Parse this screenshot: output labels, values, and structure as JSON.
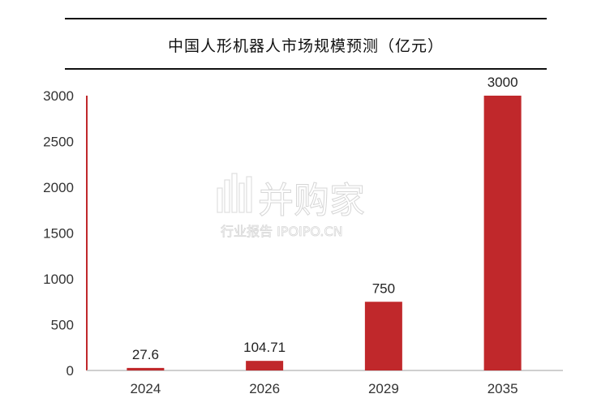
{
  "chart_data": {
    "type": "bar",
    "title": "中国人形机器人市场规模预测（亿元）",
    "categories": [
      "2024",
      "2026",
      "2029",
      "2035"
    ],
    "values": [
      27.6,
      104.71,
      750,
      3000
    ],
    "value_labels": [
      "27.6",
      "104.71",
      "750",
      "3000"
    ],
    "ylim": [
      0,
      3000
    ],
    "yticks": [
      "0",
      "500",
      "1000",
      "1500",
      "2000",
      "2500",
      "3000"
    ],
    "ytick_values": [
      0,
      500,
      1000,
      1500,
      2000,
      2500,
      3000
    ],
    "grid": false,
    "legend": "none",
    "colors": {
      "bar": "#C0282B",
      "axis": "#C0282B",
      "baseline": "#BFBFBF"
    }
  },
  "watermark": {
    "brand": "并购家",
    "tagline": "行业报告 IPOIPO.CN"
  }
}
